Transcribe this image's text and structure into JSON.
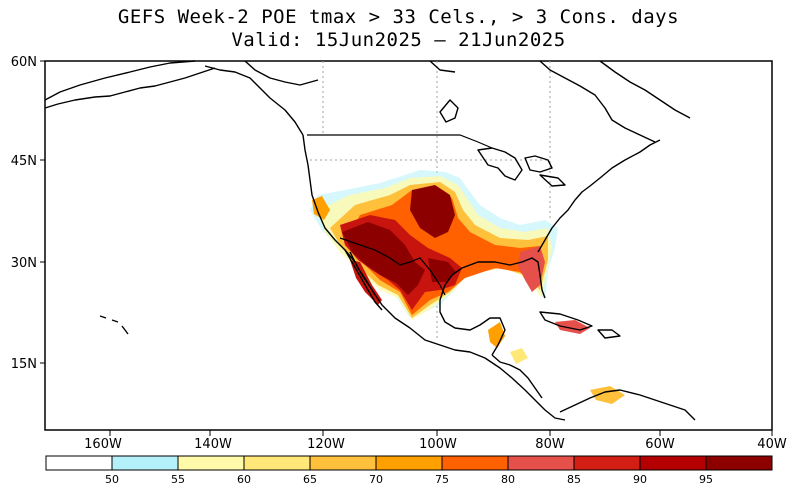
{
  "title": {
    "line1": "GEFS Week-2 POE tmax > 33 Cels., > 3 Cons. days",
    "line2": "Valid: 15Jun2025 – 21Jun2025"
  },
  "map": {
    "lat_labels": [
      "60N",
      "45N",
      "30N",
      "15N"
    ],
    "lon_labels": [
      "160W",
      "140W",
      "120W",
      "100W",
      "80W",
      "60W",
      "40W"
    ],
    "colors": {
      "land_outline": "#000000",
      "grid": "#999999",
      "p95": "#8c0000",
      "p90": "#c8140f",
      "p85": "#e6464b",
      "p80": "#f0620a",
      "p75": "#fa9600",
      "p70": "#ffb43c",
      "p65": "#ffd75a",
      "p60": "#fff08c",
      "p55": "#a0f0ff"
    }
  },
  "colorbar": {
    "labels": [
      "50",
      "55",
      "60",
      "65",
      "70",
      "75",
      "80",
      "85",
      "90",
      "95"
    ],
    "colors": [
      "#ffffff",
      "#b4f0fa",
      "#fffaaa",
      "#ffe878",
      "#ffc03c",
      "#ffa000",
      "#ff6000",
      "#e6504b",
      "#d21e14",
      "#b40000",
      "#8c0000"
    ]
  }
}
